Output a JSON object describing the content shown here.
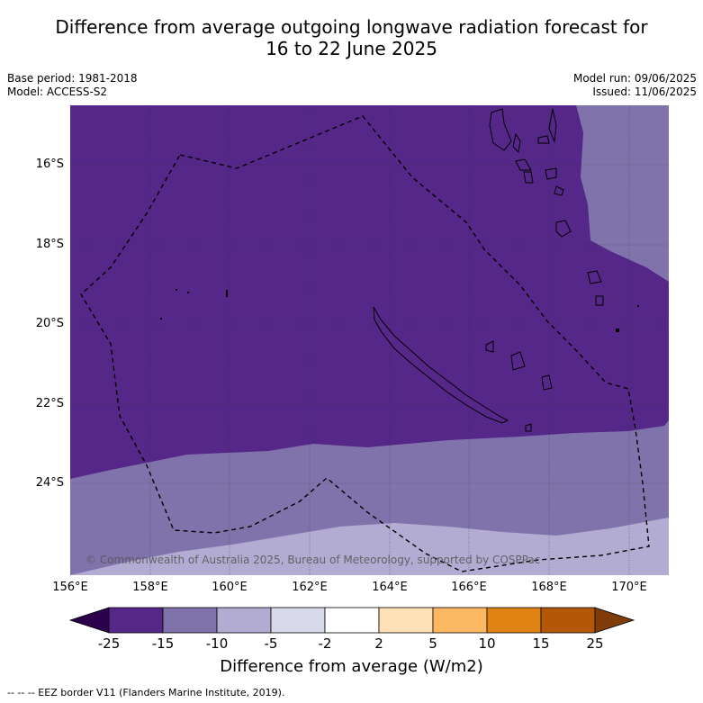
{
  "title_line1": "Difference from average outgoing longwave radiation forecast for",
  "title_line2": "16 to 22 June 2025",
  "base_period": "Base period: 1981-2018",
  "model": "Model: ACCESS-S2",
  "model_run": "Model run: 09/06/2025",
  "issued": "Issued: 11/06/2025",
  "lat_labels": [
    "16°S",
    "18°S",
    "20°S",
    "22°S",
    "24°S"
  ],
  "lon_labels": [
    "156°E",
    "158°E",
    "160°E",
    "162°E",
    "164°E",
    "166°E",
    "168°E",
    "170°E"
  ],
  "copyright": "© Commonwealth of Australia 2025, Bureau of Meteorology, supported by COSPPac",
  "colorbar": {
    "labels": [
      "-25",
      "-15",
      "-10",
      "-5",
      "-2",
      "2",
      "5",
      "10",
      "15",
      "25"
    ],
    "colors": [
      "#542788",
      "#8073ac",
      "#b2abd2",
      "#d8daeb",
      "#ffffff",
      "#fee0b6",
      "#fdb863",
      "#e08214",
      "#b35806"
    ],
    "under_color": "#2d004b",
    "over_color": "#7f3b08",
    "title": "Difference from average (W/m2)"
  },
  "footnote": "--  --  -- EEZ border V11 (Flanders Marine Institute, 2019).",
  "map_colors": {
    "strong_negative": "#542788",
    "moderate_negative": "#8073ac",
    "weak_negative": "#b2abd2"
  }
}
